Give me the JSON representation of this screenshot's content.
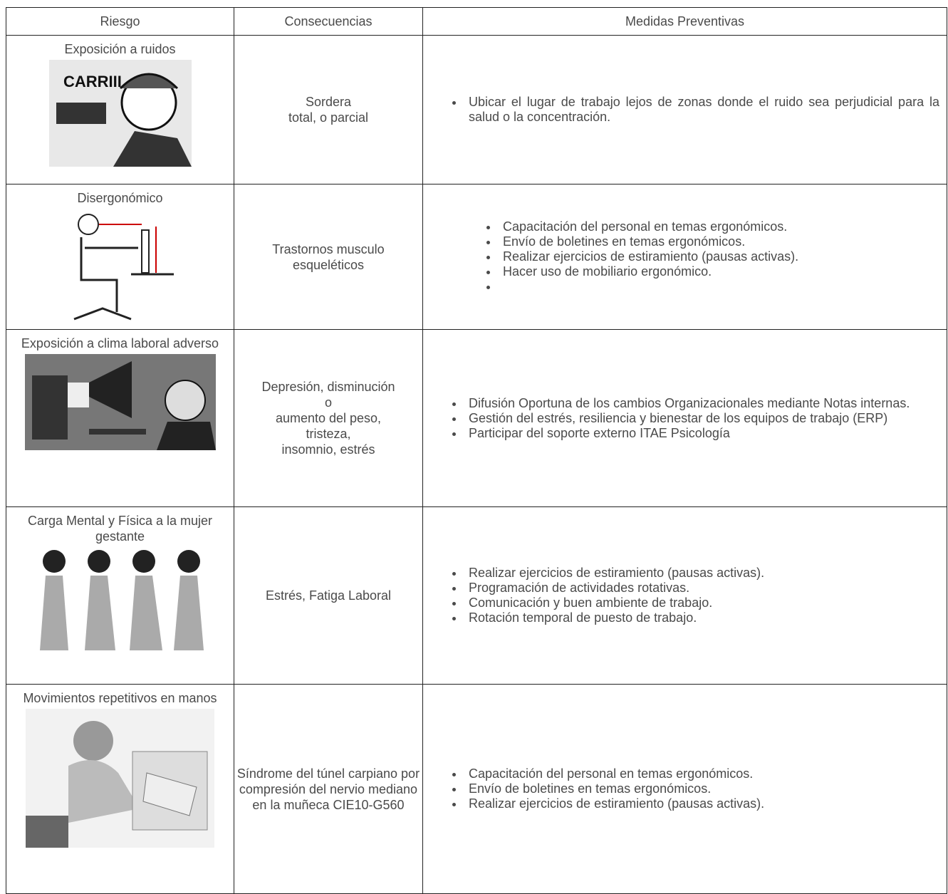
{
  "header": {
    "columns": [
      "Riesgo",
      "Consecuencias",
      "Medidas Preventivas"
    ]
  },
  "table": {
    "rows": [
      {
        "riesgo": "Exposición a ruidos",
        "consecuencias": [
          "Sordera",
          "total, o parcial"
        ],
        "medidas": [
          "Ubicar el lugar de trabajo lejos de zonas donde el ruido sea perjudicial para la salud o la concentración."
        ]
      },
      {
        "riesgo": "Disergonómico",
        "consecuencias": [
          "Trastornos musculo",
          "esqueléticos"
        ],
        "medidas": [
          "Capacitación del personal en temas ergonómicos.",
          "Envío de boletines en temas ergonómicos.",
          " Realizar ejercicios de estiramiento (pausas activas).",
          "Hacer uso de mobiliario ergonómico."
        ]
      },
      {
        "riesgo": "Exposición a clima laboral adverso",
        "consecuencias": [
          "Depresión, disminución",
          "o",
          "aumento del peso,",
          "tristeza,",
          "insomnio, estrés"
        ],
        "medidas": [
          "Difusión Oportuna de los cambios Organizacionales mediante Notas internas.",
          "Gestión del estrés, resiliencia y bienestar de los equipos de trabajo (ERP)",
          "Participar del soporte externo ITAE Psicología"
        ]
      },
      {
        "riesgo": "Carga Mental y Física a la mujer gestante",
        "consecuencias": [
          "Estrés, Fatiga Laboral"
        ],
        "medidas": [
          " Realizar ejercicios de estiramiento (pausas activas).",
          "Programación de actividades rotativas.",
          "Comunicación y buen ambiente de trabajo.",
          "Rotación temporal de puesto de trabajo."
        ]
      },
      {
        "riesgo": "Movimientos repetitivos en manos",
        "consecuencias": [
          "Síndrome del túnel carpiano por compresión del nervio mediano en la muñeca CIE10-G560"
        ],
        "medidas": [
          "Capacitación del personal en temas ergonómicos.",
          "Envío de boletines en temas ergonómicos.",
          "Realizar ejercicios de estiramiento (pausas activas)."
        ]
      }
    ]
  }
}
